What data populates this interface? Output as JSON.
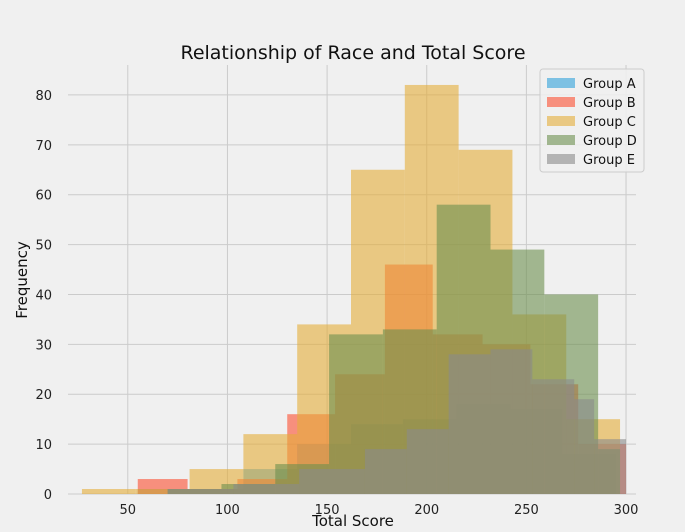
{
  "chart_data": {
    "type": "bar",
    "title": "Relationship of Race and Total Score",
    "xlabel": "Total Score",
    "ylabel": "Frequency",
    "xlim": [
      20,
      305
    ],
    "ylim": [
      0,
      86
    ],
    "xticks": [
      50,
      100,
      150,
      200,
      250,
      300
    ],
    "yticks": [
      0,
      10,
      20,
      30,
      40,
      50,
      60,
      70,
      80
    ],
    "grid": true,
    "legend_position": "top-right",
    "overlay": true,
    "bar_alpha": 0.6,
    "series": [
      {
        "name": "Group A",
        "color": "#30a2da",
        "bins": [
          {
            "x0": 55,
            "x1": 82,
            "count": 1
          },
          {
            "x0": 82,
            "x1": 108,
            "count": 1
          },
          {
            "x0": 108,
            "x1": 135,
            "count": 5
          },
          {
            "x0": 135,
            "x1": 162,
            "count": 10
          },
          {
            "x0": 162,
            "x1": 188,
            "count": 14
          },
          {
            "x0": 188,
            "x1": 215,
            "count": 15
          },
          {
            "x0": 215,
            "x1": 242,
            "count": 18
          },
          {
            "x0": 242,
            "x1": 268,
            "count": 17
          },
          {
            "x0": 268,
            "x1": 295,
            "count": 8
          }
        ]
      },
      {
        "name": "Group B",
        "color": "#fc4f30",
        "bins": [
          {
            "x0": 55,
            "x1": 80,
            "count": 3
          },
          {
            "x0": 80,
            "x1": 105,
            "count": 1
          },
          {
            "x0": 105,
            "x1": 130,
            "count": 3
          },
          {
            "x0": 130,
            "x1": 154,
            "count": 16
          },
          {
            "x0": 154,
            "x1": 179,
            "count": 24
          },
          {
            "x0": 179,
            "x1": 203,
            "count": 46
          },
          {
            "x0": 203,
            "x1": 228,
            "count": 32
          },
          {
            "x0": 228,
            "x1": 252,
            "count": 30
          },
          {
            "x0": 252,
            "x1": 276,
            "count": 22
          },
          {
            "x0": 276,
            "x1": 300,
            "count": 10
          }
        ]
      },
      {
        "name": "Group C",
        "color": "#e5ae38",
        "bins": [
          {
            "x0": 27,
            "x1": 54,
            "count": 1
          },
          {
            "x0": 54,
            "x1": 81,
            "count": 1
          },
          {
            "x0": 81,
            "x1": 108,
            "count": 5
          },
          {
            "x0": 108,
            "x1": 135,
            "count": 12
          },
          {
            "x0": 135,
            "x1": 162,
            "count": 34
          },
          {
            "x0": 162,
            "x1": 189,
            "count": 65
          },
          {
            "x0": 189,
            "x1": 216,
            "count": 82
          },
          {
            "x0": 216,
            "x1": 243,
            "count": 69
          },
          {
            "x0": 243,
            "x1": 270,
            "count": 36
          },
          {
            "x0": 270,
            "x1": 297,
            "count": 15
          }
        ]
      },
      {
        "name": "Group D",
        "color": "#6d904f",
        "bins": [
          {
            "x0": 70,
            "x1": 97,
            "count": 1
          },
          {
            "x0": 97,
            "x1": 124,
            "count": 2
          },
          {
            "x0": 124,
            "x1": 151,
            "count": 6
          },
          {
            "x0": 151,
            "x1": 178,
            "count": 32
          },
          {
            "x0": 178,
            "x1": 205,
            "count": 33
          },
          {
            "x0": 205,
            "x1": 232,
            "count": 58
          },
          {
            "x0": 232,
            "x1": 259,
            "count": 49
          },
          {
            "x0": 259,
            "x1": 286,
            "count": 40
          },
          {
            "x0": 286,
            "x1": 297,
            "count": 9
          }
        ]
      },
      {
        "name": "Group E",
        "color": "#8b8b8b",
        "bins": [
          {
            "x0": 70,
            "x1": 103,
            "count": 1
          },
          {
            "x0": 103,
            "x1": 136,
            "count": 2
          },
          {
            "x0": 136,
            "x1": 169,
            "count": 5
          },
          {
            "x0": 169,
            "x1": 190,
            "count": 9
          },
          {
            "x0": 190,
            "x1": 211,
            "count": 13
          },
          {
            "x0": 211,
            "x1": 232,
            "count": 28
          },
          {
            "x0": 232,
            "x1": 253,
            "count": 29
          },
          {
            "x0": 253,
            "x1": 274,
            "count": 23
          },
          {
            "x0": 274,
            "x1": 284,
            "count": 19
          },
          {
            "x0": 284,
            "x1": 300,
            "count": 11
          }
        ]
      }
    ]
  }
}
